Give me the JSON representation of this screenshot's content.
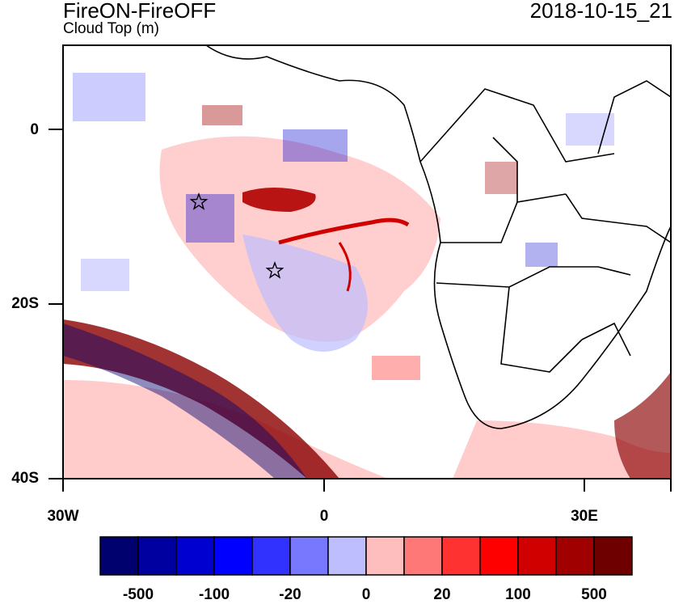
{
  "header": {
    "title": "FireON-FireOFF",
    "subtitle": "Cloud Top (m)",
    "datetime": "2018-10-15_21"
  },
  "map": {
    "y_labels": [
      "0",
      "20S",
      "40S"
    ],
    "x_labels": [
      "30W",
      "0",
      "30E"
    ],
    "markers": [
      "star-marker",
      "star-marker"
    ]
  },
  "colorbar": {
    "colors": [
      "#00006e",
      "#0000a0",
      "#0000d0",
      "#0000ff",
      "#3232ff",
      "#7878ff",
      "#bebeff",
      "#ffbebe",
      "#ff7878",
      "#ff3232",
      "#ff0000",
      "#d00000",
      "#a00000",
      "#6e0000"
    ],
    "labels": [
      "-500",
      "-100",
      "-20",
      "0",
      "20",
      "100",
      "500"
    ]
  }
}
